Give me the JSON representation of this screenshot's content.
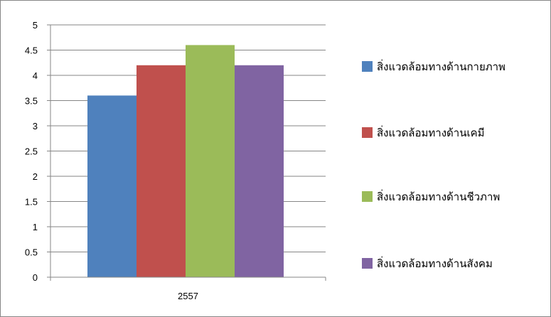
{
  "chart_data": {
    "type": "bar",
    "title": "",
    "xlabel": "",
    "ylabel": "",
    "categories": [
      "2557"
    ],
    "ylim": [
      0,
      5
    ],
    "yticks": [
      "0",
      "0.5",
      "1",
      "1.5",
      "2",
      "2.5",
      "3",
      "3.5",
      "4",
      "4.5",
      "5"
    ],
    "grid": true,
    "legend_position": "right",
    "series": [
      {
        "name": "สิ่งแวดล้อมทางด้านกายภาพ",
        "values": [
          3.6
        ],
        "color": "#4F81BD"
      },
      {
        "name": "สิ่งแวดล้อมทางด้านเคมี",
        "values": [
          4.2
        ],
        "color": "#C0504D"
      },
      {
        "name": "สิ่งแวดล้อมทางด้านชีวภาพ",
        "values": [
          4.6
        ],
        "color": "#9BBB59"
      },
      {
        "name": "สิ่งแวดล้อมทางด้านสังคม",
        "values": [
          4.2
        ],
        "color": "#8064A2"
      }
    ]
  }
}
